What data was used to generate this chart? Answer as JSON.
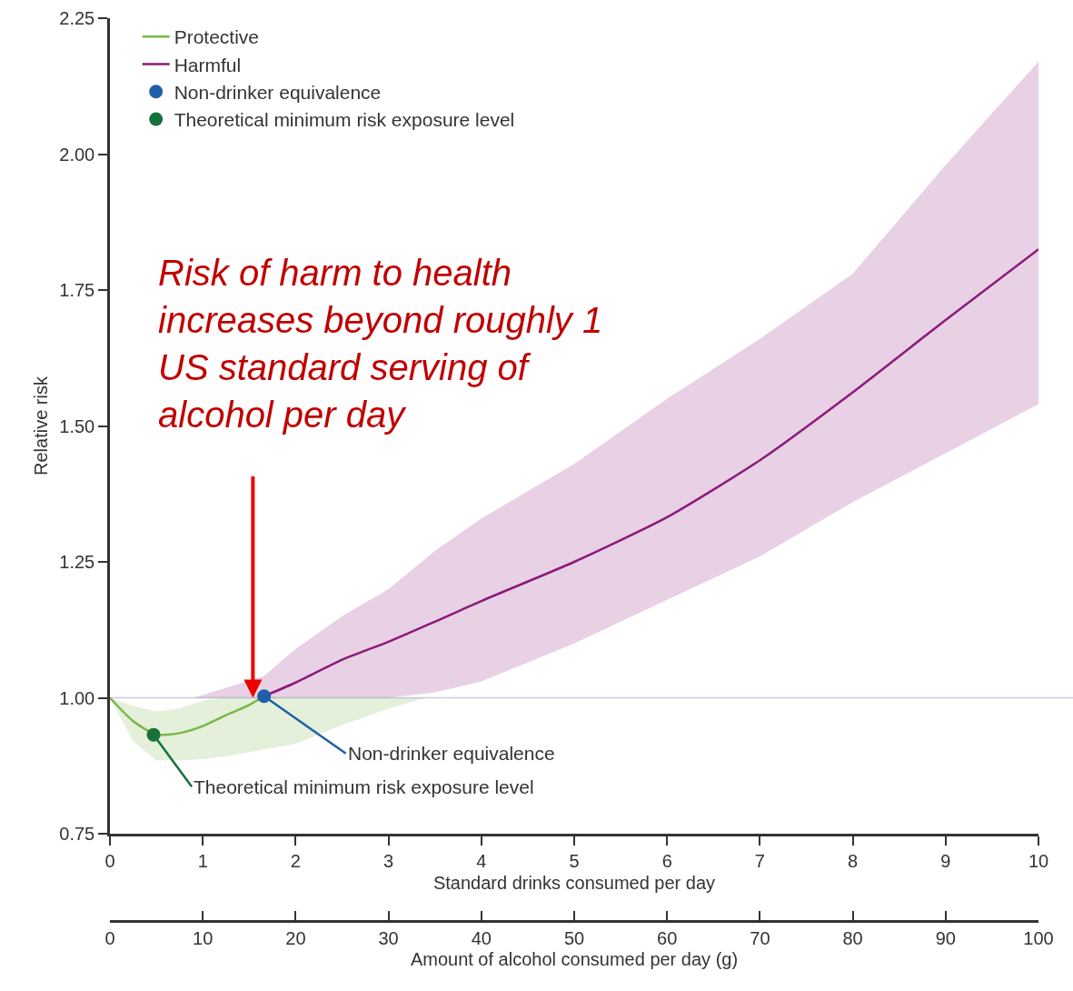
{
  "chart_data": {
    "type": "line",
    "xlabel": "Standard drinks consumed per day",
    "ylabel": "Relative risk",
    "x2label": "Amount of alcohol consumed per day (g)",
    "xlim": [
      0,
      10
    ],
    "xticks": [
      0,
      1,
      2,
      3,
      4,
      5,
      6,
      7,
      8,
      9,
      10
    ],
    "x2lim": [
      0,
      100
    ],
    "x2ticks": [
      0,
      10,
      20,
      30,
      40,
      50,
      60,
      70,
      80,
      90,
      100
    ],
    "ylim": [
      0.75,
      2.25
    ],
    "yticks": [
      0.75,
      {
        "value": 1.0,
        "label": "1.00"
      },
      1.25,
      {
        "value": 1.5,
        "label": "1.50"
      },
      1.75,
      {
        "value": 2.0,
        "label": "2.00"
      },
      2.25
    ],
    "series": [
      {
        "name": "Protective",
        "color": "#7ab648",
        "x": [
          0,
          0.25,
          0.5,
          0.75,
          1,
          1.25,
          1.5,
          1.66,
          2,
          2.5,
          3,
          3.4
        ],
        "values": [
          1.0,
          0.957,
          0.932,
          0.935,
          0.948,
          0.968,
          0.987,
          1.003,
          null,
          null,
          null,
          null
        ],
        "lower": [
          1.0,
          0.92,
          0.885,
          0.885,
          0.887,
          0.893,
          0.9,
          0.905,
          0.915,
          0.95,
          0.98,
          1.0
        ],
        "upper": [
          1.0,
          0.985,
          0.975,
          0.98,
          0.995,
          1.0,
          1.0,
          1.0,
          1.0,
          1.0,
          1.0,
          1.0
        ]
      },
      {
        "name": "Harmful",
        "color": "#8b1a7a",
        "x": [
          0.9,
          1.66,
          2,
          2.5,
          3,
          3.5,
          4,
          5,
          6,
          7,
          8,
          9,
          10
        ],
        "values": [
          null,
          1.003,
          1.028,
          1.07,
          1.103,
          1.14,
          1.178,
          1.25,
          1.332,
          1.437,
          1.562,
          1.695,
          1.825
        ],
        "lower": [
          1.0,
          1.0,
          1.0,
          1.0,
          1.0,
          1.01,
          1.03,
          1.1,
          1.18,
          1.26,
          1.36,
          1.45,
          1.54
        ],
        "upper": [
          1.0,
          1.04,
          1.09,
          1.15,
          1.2,
          1.27,
          1.33,
          1.43,
          1.55,
          1.66,
          1.78,
          1.98,
          2.17
        ]
      },
      {
        "name": "Non-drinker equivalence",
        "type": "scatter",
        "color": "#1f5fa8",
        "x": [
          1.66
        ],
        "values": [
          1.003
        ]
      },
      {
        "name": "Theoretical minimum risk exposure level",
        "type": "scatter",
        "color": "#17713a",
        "x": [
          0.47
        ],
        "values": [
          0.932
        ]
      }
    ],
    "ref_lines": [
      {
        "axis": "y",
        "value": 1.0,
        "color": "#c8cde0"
      }
    ],
    "annotations": [
      {
        "text": "Risk of harm to health increases beyond roughly 1 US standard serving of alcohol per day",
        "x": 1.54,
        "y": 1.0
      },
      {
        "text": "Non-drinker equivalence",
        "x": 1.66,
        "y": 1.003
      },
      {
        "text": "Theoretical minimum risk exposure level",
        "x": 0.47,
        "y": 0.932
      }
    ],
    "legend": "top left",
    "line_style": "solid"
  }
}
